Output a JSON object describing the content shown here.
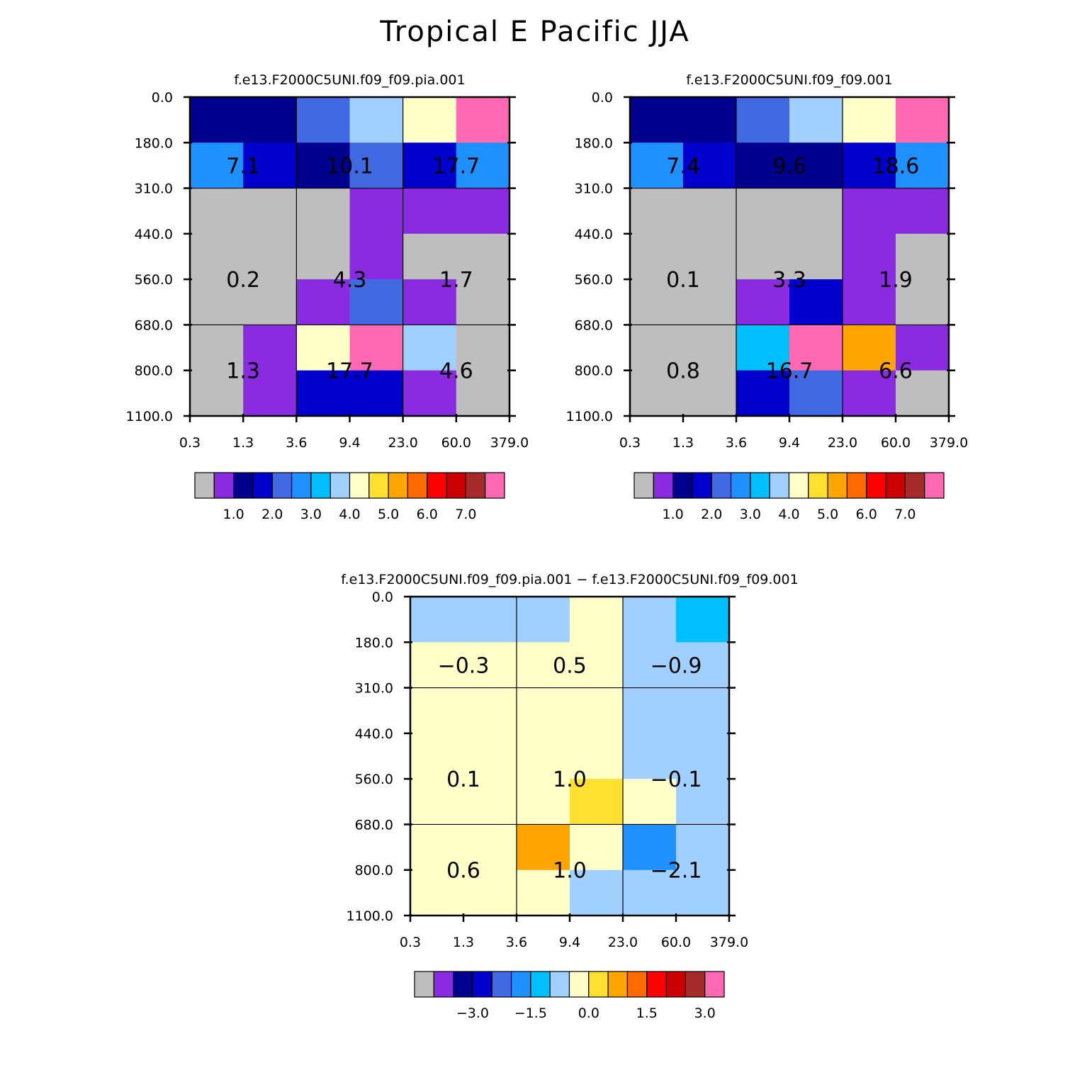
{
  "title": "Tropical E Pacific JJA",
  "colors": {
    "grid_line": "#000000",
    "frame": "#000000"
  },
  "chart_data": [
    {
      "type": "heatmap",
      "title": "f.e13.F2000C5UNI.f09_f09.pia.001",
      "x_ticks": [
        "0.3",
        "1.3",
        "3.6",
        "9.4",
        "23.0",
        "60.0",
        "379.0"
      ],
      "y_ticks": [
        "0.0",
        "180.0",
        "310.0",
        "440.0",
        "560.0",
        "680.0",
        "800.0",
        "1100.0"
      ],
      "cell_colors": [
        [
          "#00008F",
          "#00008F",
          "#4169E1",
          "#A0D0FF",
          "#FFFFC8",
          "#FF69B4"
        ],
        [
          "#1E90FF",
          "#0000CD",
          "#00008F",
          "#4169E1",
          "#0000CD",
          "#1E90FF"
        ],
        [
          "#BEBEBE",
          "#BEBEBE",
          "#BEBEBE",
          "#8A2BE2",
          "#8A2BE2",
          "#8A2BE2"
        ],
        [
          "#BEBEBE",
          "#BEBEBE",
          "#BEBEBE",
          "#8A2BE2",
          "#BEBEBE",
          "#BEBEBE"
        ],
        [
          "#BEBEBE",
          "#BEBEBE",
          "#8A2BE2",
          "#4169E1",
          "#8A2BE2",
          "#BEBEBE"
        ],
        [
          "#BEBEBE",
          "#8A2BE2",
          "#FFFFC8",
          "#FF69B4",
          "#A0D0FF",
          "#BEBEBE"
        ],
        [
          "#BEBEBE",
          "#8A2BE2",
          "#0000CD",
          "#0000CD",
          "#8A2BE2",
          "#BEBEBE"
        ]
      ],
      "block_values": [
        [
          "7.1",
          "10.1",
          "17.7"
        ],
        [
          "0.2",
          "4.3",
          "1.7"
        ],
        [
          "1.3",
          "17.7",
          "4.6"
        ]
      ],
      "colorbar": {
        "colors": [
          "#BEBEBE",
          "#8A2BE2",
          "#00008F",
          "#0000CD",
          "#4169E1",
          "#1E90FF",
          "#00BFFF",
          "#A0D0FF",
          "#FFFFC8",
          "#FFE030",
          "#FFA500",
          "#FF6A00",
          "#FF0000",
          "#CD0000",
          "#A52A2A",
          "#FF69B4"
        ],
        "labels": [
          {
            "at": 1,
            "text": "1.0"
          },
          {
            "at": 3,
            "text": "2.0"
          },
          {
            "at": 5,
            "text": "3.0"
          },
          {
            "at": 7,
            "text": "4.0"
          },
          {
            "at": 9,
            "text": "5.0"
          },
          {
            "at": 11,
            "text": "6.0"
          },
          {
            "at": 13,
            "text": "7.0"
          }
        ]
      }
    },
    {
      "type": "heatmap",
      "title": "f.e13.F2000C5UNI.f09_f09.001",
      "x_ticks": [
        "0.3",
        "1.3",
        "3.6",
        "9.4",
        "23.0",
        "60.0",
        "379.0"
      ],
      "y_ticks": [
        "0.0",
        "180.0",
        "310.0",
        "440.0",
        "560.0",
        "680.0",
        "800.0",
        "1100.0"
      ],
      "cell_colors": [
        [
          "#00008F",
          "#00008F",
          "#4169E1",
          "#A0D0FF",
          "#FFFFC8",
          "#FF69B4"
        ],
        [
          "#1E90FF",
          "#0000CD",
          "#00008F",
          "#00008F",
          "#0000CD",
          "#1E90FF"
        ],
        [
          "#BEBEBE",
          "#BEBEBE",
          "#BEBEBE",
          "#BEBEBE",
          "#8A2BE2",
          "#8A2BE2"
        ],
        [
          "#BEBEBE",
          "#BEBEBE",
          "#BEBEBE",
          "#BEBEBE",
          "#8A2BE2",
          "#BEBEBE"
        ],
        [
          "#BEBEBE",
          "#BEBEBE",
          "#8A2BE2",
          "#0000CD",
          "#8A2BE2",
          "#BEBEBE"
        ],
        [
          "#BEBEBE",
          "#BEBEBE",
          "#00BFFF",
          "#FF69B4",
          "#FFA500",
          "#8A2BE2"
        ],
        [
          "#BEBEBE",
          "#BEBEBE",
          "#0000CD",
          "#4169E1",
          "#8A2BE2",
          "#BEBEBE"
        ]
      ],
      "block_values": [
        [
          "7.4",
          "9.6",
          "18.6"
        ],
        [
          "0.1",
          "3.3",
          "1.9"
        ],
        [
          "0.8",
          "16.7",
          "6.6"
        ]
      ],
      "colorbar": {
        "colors": [
          "#BEBEBE",
          "#8A2BE2",
          "#00008F",
          "#0000CD",
          "#4169E1",
          "#1E90FF",
          "#00BFFF",
          "#A0D0FF",
          "#FFFFC8",
          "#FFE030",
          "#FFA500",
          "#FF6A00",
          "#FF0000",
          "#CD0000",
          "#A52A2A",
          "#FF69B4"
        ],
        "labels": [
          {
            "at": 1,
            "text": "1.0"
          },
          {
            "at": 3,
            "text": "2.0"
          },
          {
            "at": 5,
            "text": "3.0"
          },
          {
            "at": 7,
            "text": "4.0"
          },
          {
            "at": 9,
            "text": "5.0"
          },
          {
            "at": 11,
            "text": "6.0"
          },
          {
            "at": 13,
            "text": "7.0"
          }
        ]
      }
    },
    {
      "type": "heatmap",
      "title": "f.e13.F2000C5UNI.f09_f09.pia.001 − f.e13.F2000C5UNI.f09_f09.001",
      "x_ticks": [
        "0.3",
        "1.3",
        "3.6",
        "9.4",
        "23.0",
        "60.0",
        "379.0"
      ],
      "y_ticks": [
        "0.0",
        "180.0",
        "310.0",
        "440.0",
        "560.0",
        "680.0",
        "800.0",
        "1100.0"
      ],
      "cell_colors": [
        [
          "#A0D0FF",
          "#A0D0FF",
          "#A0D0FF",
          "#FFFFC8",
          "#A0D0FF",
          "#00BFFF"
        ],
        [
          "#FFFFC8",
          "#FFFFC8",
          "#FFFFC8",
          "#FFFFC8",
          "#A0D0FF",
          "#A0D0FF"
        ],
        [
          "#FFFFC8",
          "#FFFFC8",
          "#FFFFC8",
          "#FFFFC8",
          "#A0D0FF",
          "#A0D0FF"
        ],
        [
          "#FFFFC8",
          "#FFFFC8",
          "#FFFFC8",
          "#FFFFC8",
          "#A0D0FF",
          "#A0D0FF"
        ],
        [
          "#FFFFC8",
          "#FFFFC8",
          "#FFFFC8",
          "#FFE030",
          "#FFFFC8",
          "#A0D0FF"
        ],
        [
          "#FFFFC8",
          "#FFFFC8",
          "#FFA500",
          "#FFFFC8",
          "#1E90FF",
          "#A0D0FF"
        ],
        [
          "#FFFFC8",
          "#FFFFC8",
          "#FFFFC8",
          "#A0D0FF",
          "#A0D0FF",
          "#A0D0FF"
        ]
      ],
      "block_values": [
        [
          "−0.3",
          "0.5",
          "−0.9"
        ],
        [
          "0.1",
          "1.0",
          "−0.1"
        ],
        [
          "0.6",
          "1.0",
          "−2.1"
        ]
      ],
      "colorbar": {
        "colors": [
          "#BEBEBE",
          "#8A2BE2",
          "#00008F",
          "#0000CD",
          "#4169E1",
          "#1E90FF",
          "#00BFFF",
          "#A0D0FF",
          "#FFFFC8",
          "#FFE030",
          "#FFA500",
          "#FF6A00",
          "#FF0000",
          "#CD0000",
          "#A52A2A",
          "#FF69B4"
        ],
        "labels": [
          {
            "at": 2,
            "text": "−3.0"
          },
          {
            "at": 5,
            "text": "−1.5"
          },
          {
            "at": 8,
            "text": "0.0"
          },
          {
            "at": 11,
            "text": "1.5"
          },
          {
            "at": 14,
            "text": "3.0"
          }
        ]
      }
    }
  ]
}
